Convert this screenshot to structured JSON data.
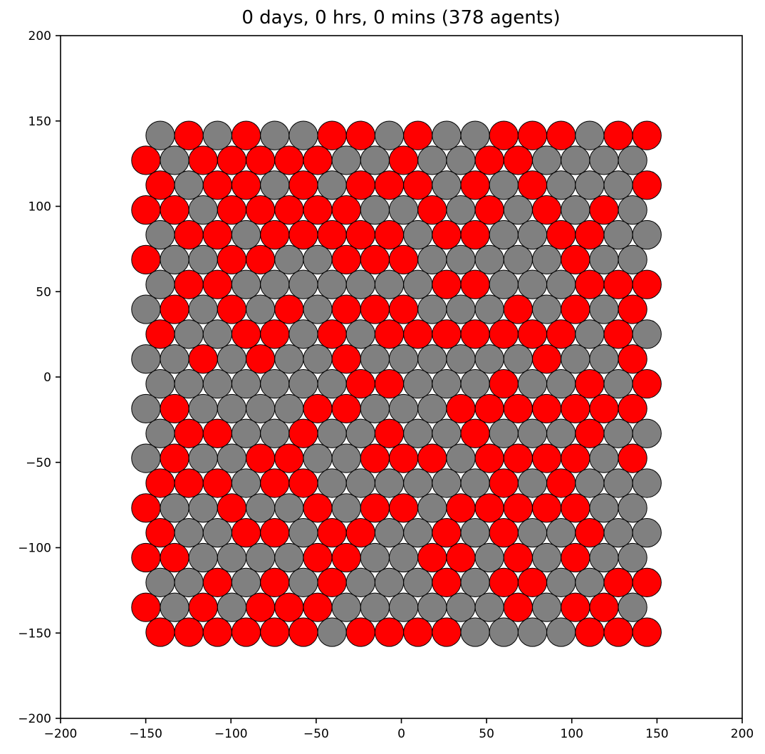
{
  "chart_data": {
    "type": "scatter",
    "title": "0 days, 0 hrs, 0 mins (378 agents)",
    "xlabel": "",
    "ylabel": "",
    "xlim": [
      -200,
      200
    ],
    "ylim": [
      -200,
      200
    ],
    "xticks": [
      -200,
      -150,
      -100,
      -50,
      0,
      50,
      100,
      150,
      200
    ],
    "yticks": [
      -200,
      -150,
      -100,
      -50,
      0,
      50,
      100,
      150,
      200
    ],
    "xtick_labels": [
      "−200",
      "−150",
      "−100",
      "−50",
      "0",
      "50",
      "100",
      "150",
      "200"
    ],
    "ytick_labels": [
      "−200",
      "−150",
      "−100",
      "−50",
      "0",
      "50",
      "100",
      "150",
      "200"
    ],
    "grid": false,
    "legend": "none",
    "agent_count": 378,
    "agent_radius": 8.4,
    "colors": {
      "infected": "#ff0000",
      "healthy": "#808080",
      "edge": "#000000"
    },
    "lattice": {
      "rows": 21,
      "cols": 18,
      "x_start_even_row": -141.5,
      "x_start_odd_row": -149.9,
      "x_step": 16.8,
      "y_top": 141.5,
      "y_step": 14.55
    },
    "rows_pattern": [
      "GRGRGGRRGRGGRRRGRR",
      "RGRRRRRGGRGGRRGGGG",
      "RGRRGRGRRRGRGRGGGR",
      "RRGRRRRRGGRGRGRGRG",
      "GRRGRRRRRGRRGGRRGG",
      "RGGRRGGRRRGGGGGRGG",
      "GRRGGGGGGGRRGGGRRR",
      "GRGRGRGRRRGGGRGRGR",
      "RGGRRGRGRRRRRRRGRG",
      "GGRGRGGRGGGGGGRGGR",
      "GGGGGGGRRGGGRGGRGR",
      "GRGGGGRRGGGRRRRRRR",
      "GRRGGRGGRGGRGGGRGG",
      "GRGGRRGGRRRGRRRRGR",
      "RRRGRRGGGGGGRGRGGG",
      "RGGRGGRGRRGRRRRRGG",
      "RGGRRGRRGGRGRGGRGG",
      "RRGGGGRRGGRRGRGRGG",
      "GGRGRGRGGGRGRRGGRR",
      "RGRGRRRGGGGGGRGRRG",
      "RRRRRRGRRRRGGGGRRR"
    ]
  }
}
